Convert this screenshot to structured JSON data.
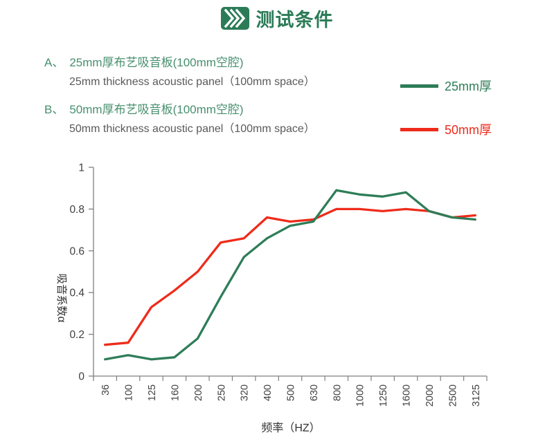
{
  "header": {
    "title": "测试条件",
    "icon": "chevrons-right-icon"
  },
  "conditions": [
    {
      "key": "A、",
      "zh": "25mm厚布艺吸音板(100mm空腔)",
      "en": "25mm thickness acoustic panel（100mm space）"
    },
    {
      "key": "B、",
      "zh": "50mm厚布艺吸音板(100mm空腔)",
      "en": "50mm thickness acoustic panel（100mm space）"
    }
  ],
  "legend": [
    {
      "label": "25mm厚",
      "color": "#2E7D58"
    },
    {
      "label": "50mm厚",
      "color": "#EE2B1A"
    }
  ],
  "chart_data": {
    "type": "line",
    "categories": [
      "36",
      "100",
      "125",
      "160",
      "200",
      "250",
      "320",
      "400",
      "500",
      "630",
      "800",
      "1000",
      "1250",
      "1600",
      "2000",
      "2500",
      "3125"
    ],
    "series": [
      {
        "name": "25mm厚",
        "color": "#2E7D58",
        "values": [
          0.08,
          0.1,
          0.08,
          0.09,
          0.18,
          0.38,
          0.57,
          0.66,
          0.72,
          0.74,
          0.89,
          0.87,
          0.86,
          0.88,
          0.79,
          0.76,
          0.75
        ]
      },
      {
        "name": "50mm厚",
        "color": "#EE2B1A",
        "values": [
          0.15,
          0.16,
          0.33,
          0.41,
          0.5,
          0.64,
          0.66,
          0.76,
          0.74,
          0.75,
          0.8,
          0.8,
          0.79,
          0.8,
          0.79,
          0.76,
          0.77
        ]
      }
    ],
    "xlabel": "频率（HZ）",
    "ylabel": "吸音系数α",
    "ylim": [
      0,
      1
    ],
    "yticks": [
      0,
      0.2,
      0.4,
      0.6,
      0.8,
      1
    ],
    "ytick_labels": [
      "0",
      "0.2",
      "0.4",
      "0.6",
      "0.8",
      "1"
    ],
    "grid": false,
    "legend_position": "top-right"
  },
  "colors": {
    "title_green": "#2B7B57",
    "cond_green": "#478F6E",
    "en_gray": "#595959",
    "axis_line": "#7F7F7F",
    "tick_text": "#404040",
    "axis_title_text": "#333333"
  }
}
